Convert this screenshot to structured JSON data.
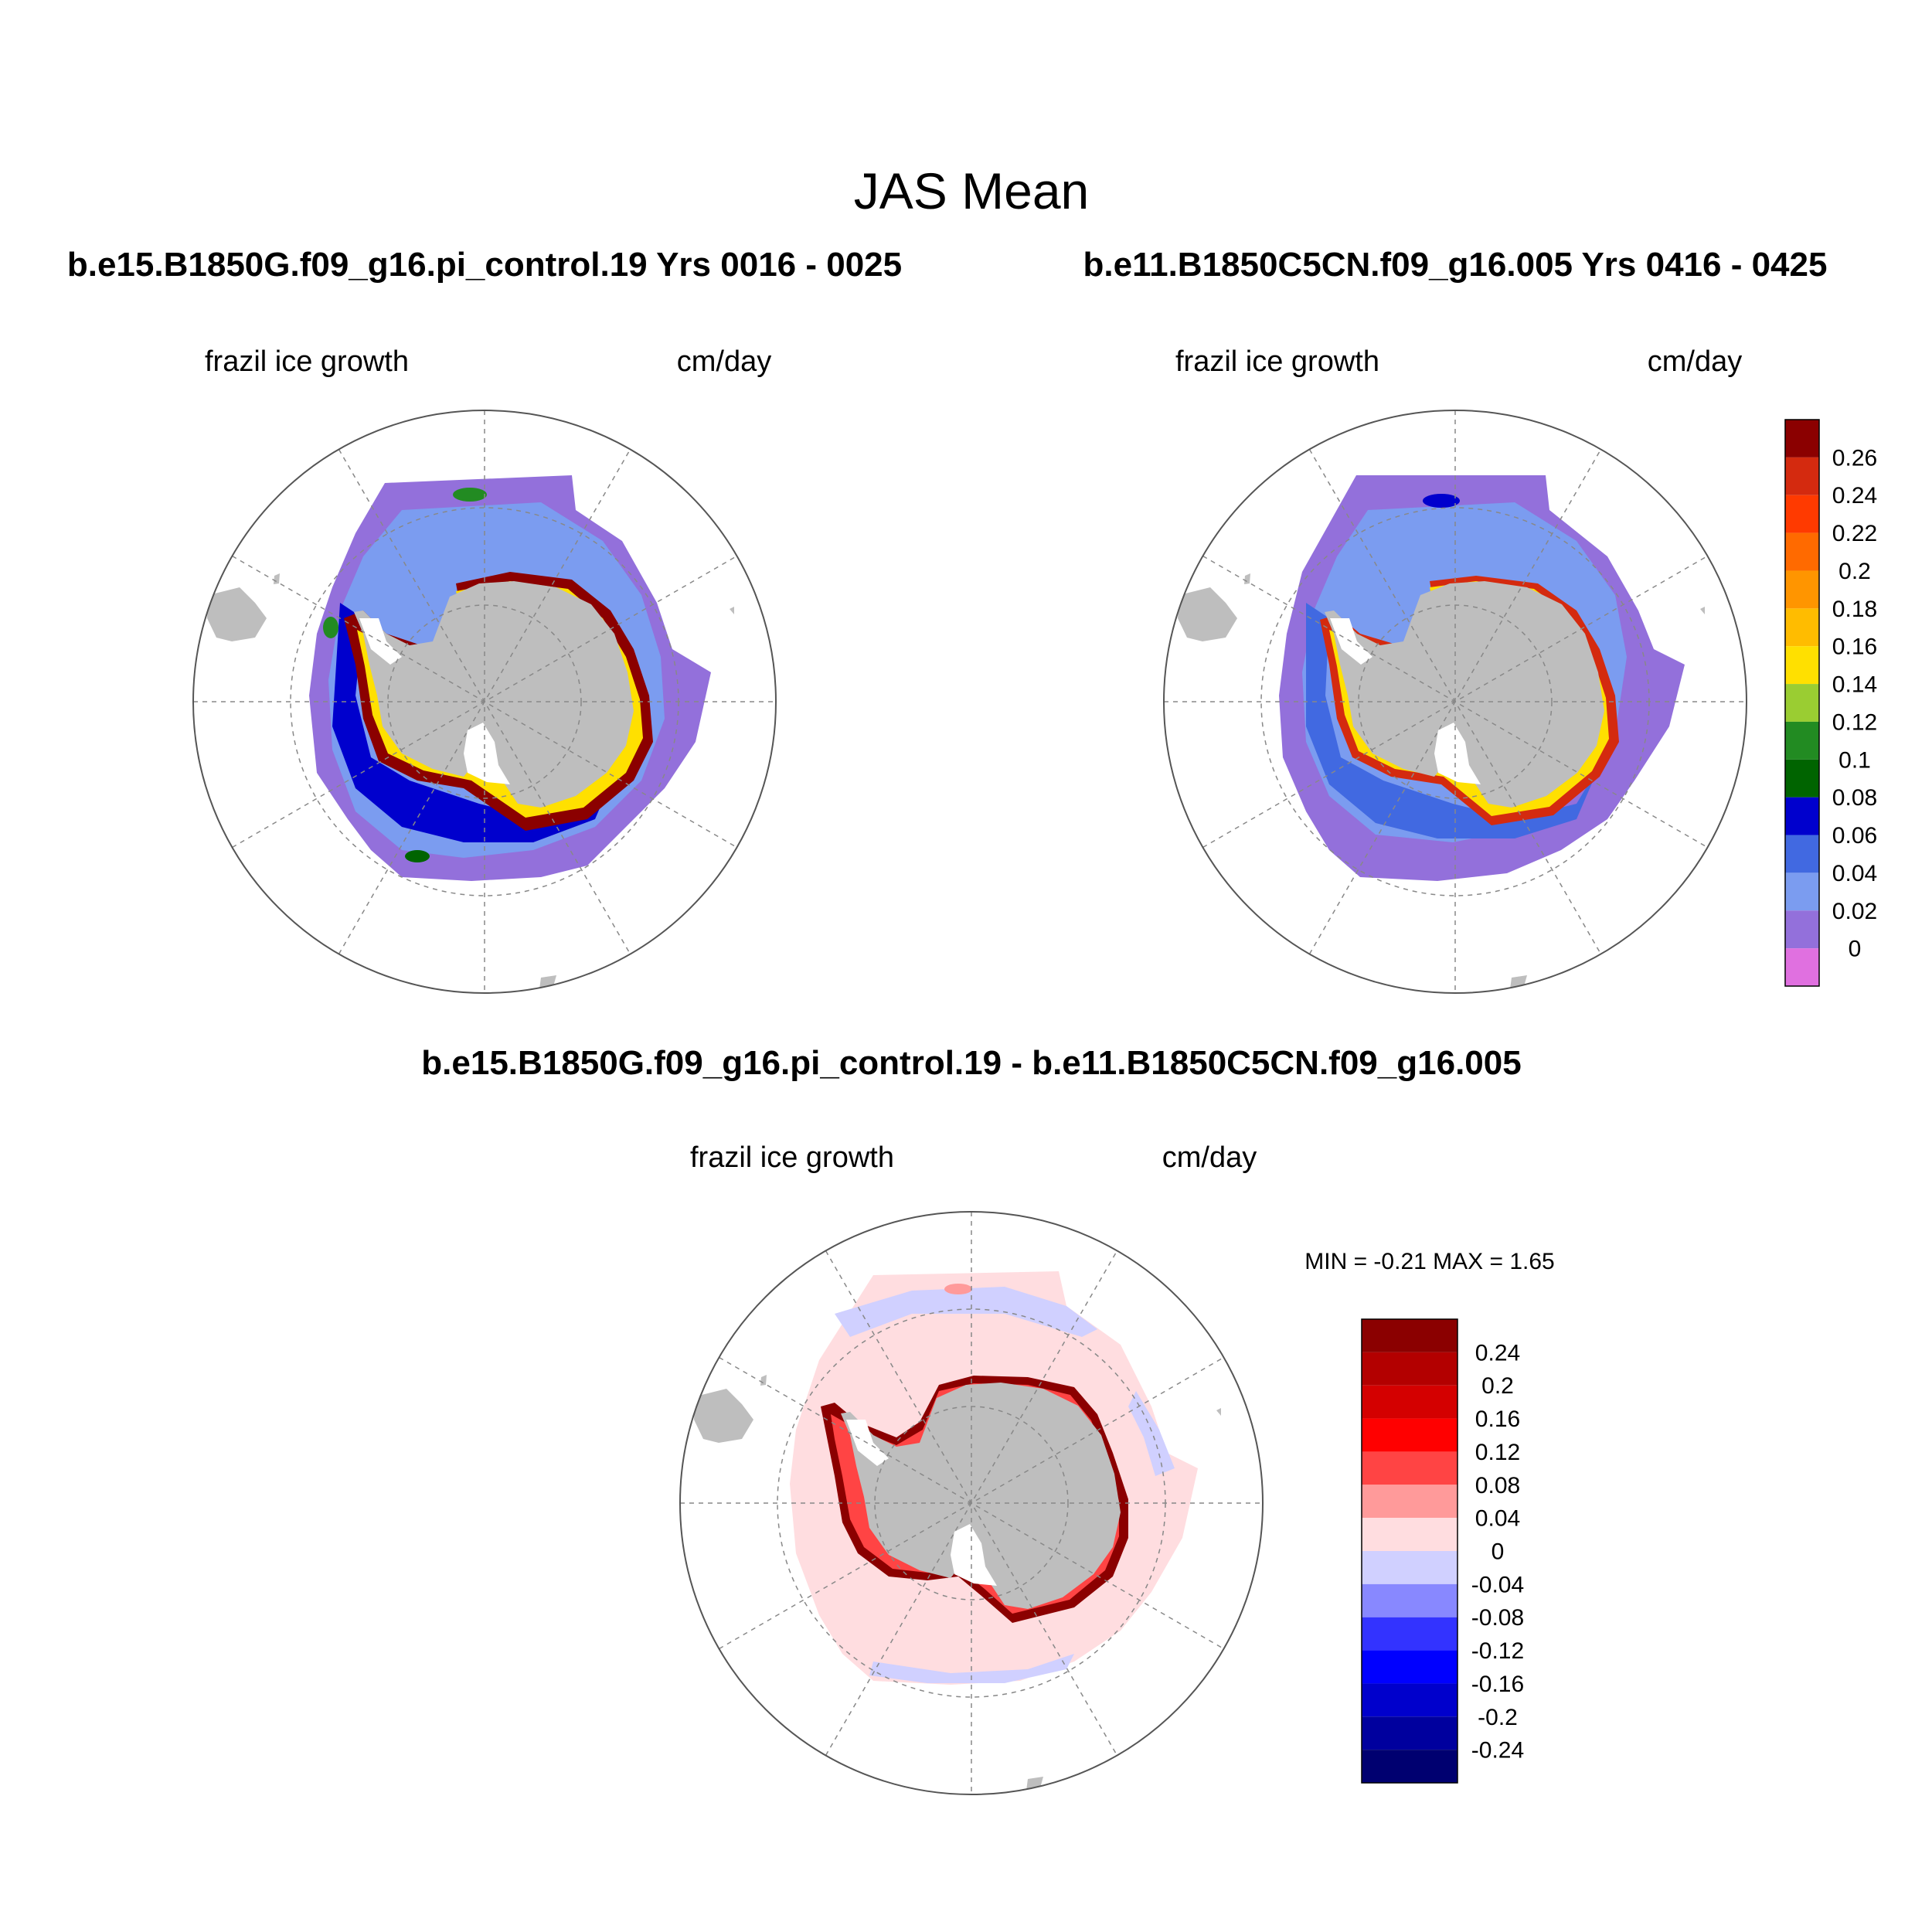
{
  "title": "JAS Mean",
  "panels": {
    "left": {
      "case_title": "b.e15.B1850G.f09_g16.pi_control.19  Yrs 0016 - 0025",
      "variable": "frazil ice growth",
      "units": "cm/day"
    },
    "right": {
      "case_title": "b.e11.B1850C5CN.f09_g16.005  Yrs 0416 - 0425",
      "variable": "frazil ice growth",
      "units": "cm/day"
    },
    "diff": {
      "case_title": "b.e15.B1850G.f09_g16.pi_control.19 - b.e11.B1850C5CN.f09_g16.005",
      "variable": "frazil ice growth",
      "units": "cm/day",
      "stats": "MIN =  -0.21 MAX =   1.65"
    }
  },
  "colorbar_main": {
    "colors": [
      "#8b0000",
      "#d42a0f",
      "#ff3a00",
      "#ff6a00",
      "#ff9500",
      "#ffbc00",
      "#ffe000",
      "#9acd32",
      "#228b22",
      "#006400",
      "#0000cd",
      "#4169e1",
      "#7b9cf0",
      "#9370db",
      "#e070e0"
    ],
    "labels": [
      "0.26",
      "0.24",
      "0.22",
      "0.2",
      "0.18",
      "0.16",
      "0.14",
      "0.12",
      "0.1",
      "0.08",
      "0.06",
      "0.04",
      "0.02",
      "0"
    ]
  },
  "colorbar_diff": {
    "colors": [
      "#8b0000",
      "#b30000",
      "#d40000",
      "#ff0000",
      "#ff4444",
      "#ff9a9a",
      "#ffdde0",
      "#d0d0ff",
      "#8888ff",
      "#3333ff",
      "#0000ff",
      "#0000cc",
      "#00009e",
      "#000070"
    ],
    "labels": [
      "0.24",
      "0.2",
      "0.16",
      "0.12",
      "0.08",
      "0.04",
      "0",
      "-0.04",
      "-0.08",
      "-0.12",
      "-0.16",
      "-0.2",
      "-0.24"
    ]
  },
  "colors": {
    "land": "#bebebe",
    "ice_shelf": "#ffffff",
    "grid": "#888888"
  }
}
